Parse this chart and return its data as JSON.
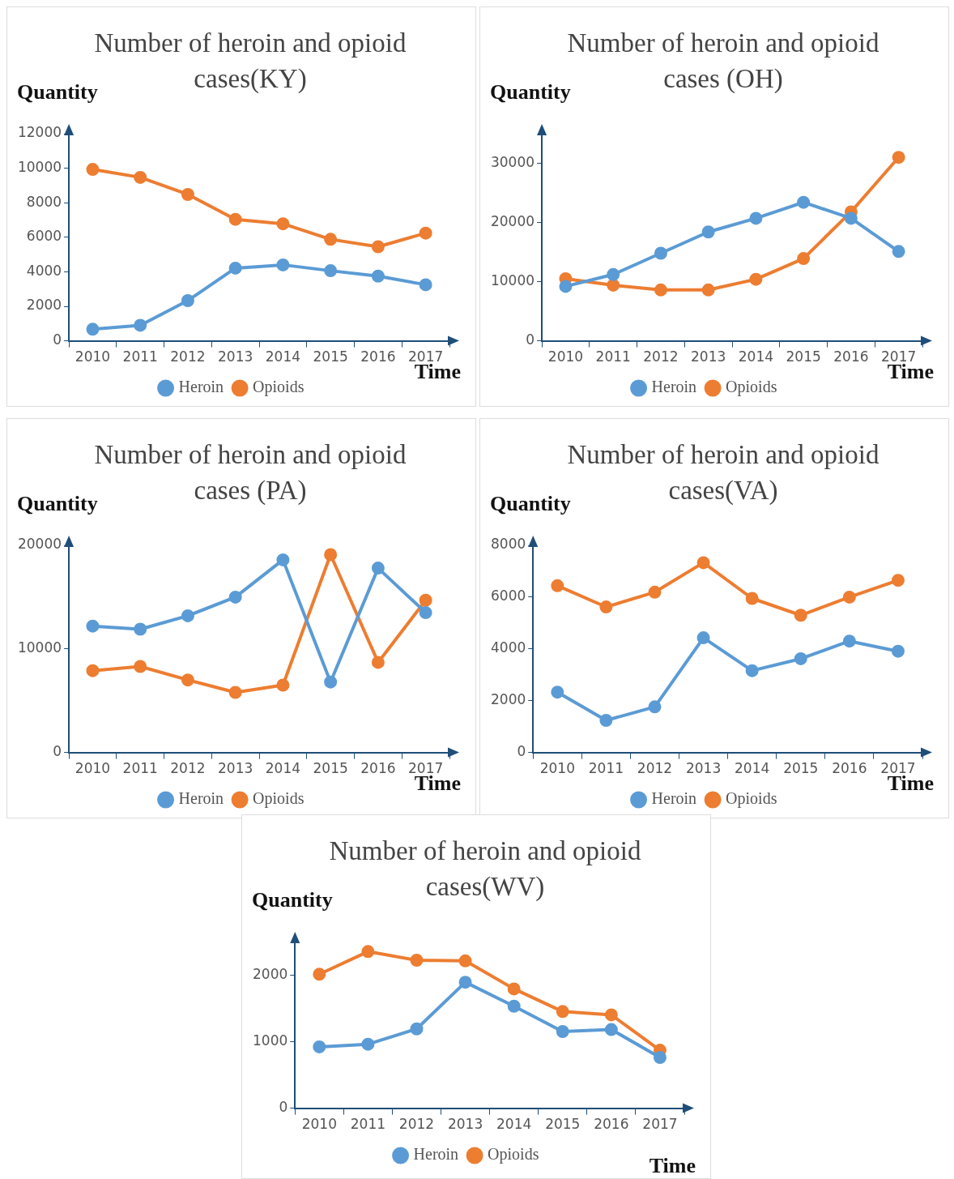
{
  "chart_data": [
    {
      "type": "line",
      "title": "Number of heroin and opioid cases(KY)",
      "ylabel": "Quantity",
      "xlabel": "Time",
      "categories": [
        "2010",
        "2011",
        "2012",
        "2013",
        "2014",
        "2015",
        "2016",
        "2017"
      ],
      "ylim": [
        0,
        12000
      ],
      "yticks": [
        0,
        2000,
        4000,
        6000,
        8000,
        10000,
        12000
      ],
      "grid": false,
      "legend": "bottom",
      "marker": "circle",
      "series": [
        {
          "name": "Heroin",
          "color": "#5b9bd5",
          "values": [
            670,
            900,
            2330,
            4210,
            4400,
            4060,
            3750,
            3250
          ]
        },
        {
          "name": "Opioids",
          "color": "#ed7d31",
          "values": [
            9930,
            9470,
            8480,
            7040,
            6780,
            5880,
            5450,
            6240
          ]
        }
      ]
    },
    {
      "type": "line",
      "title": "Number of heroin and opioid cases (OH)",
      "ylabel": "Quantity",
      "xlabel": "Time",
      "categories": [
        "2010",
        "2011",
        "2012",
        "2013",
        "2014",
        "2015",
        "2016",
        "2017"
      ],
      "ylim": [
        0,
        35000
      ],
      "yticks": [
        0,
        10000,
        20000,
        30000
      ],
      "grid": false,
      "legend": "bottom",
      "marker": "circle",
      "series": [
        {
          "name": "Heroin",
          "color": "#5b9bd5",
          "values": [
            9200,
            11200,
            14800,
            18400,
            20700,
            23400,
            20700,
            15100
          ]
        },
        {
          "name": "Opioids",
          "color": "#ed7d31",
          "values": [
            10500,
            9400,
            8600,
            8600,
            10400,
            13900,
            21800,
            31000
          ]
        }
      ]
    },
    {
      "type": "line",
      "title": "Number of heroin and opioid cases (PA)",
      "ylabel": "Quantity",
      "xlabel": "Time",
      "categories": [
        "2010",
        "2011",
        "2012",
        "2013",
        "2014",
        "2015",
        "2016",
        "2017"
      ],
      "ylim": [
        0,
        20000
      ],
      "yticks": [
        0,
        10000,
        20000
      ],
      "grid": false,
      "legend": "bottom",
      "marker": "circle",
      "series": [
        {
          "name": "Heroin",
          "color": "#5b9bd5",
          "values": [
            12200,
            11900,
            13200,
            15000,
            18600,
            6800,
            17800,
            13500
          ]
        },
        {
          "name": "Opioids",
          "color": "#ed7d31",
          "values": [
            7900,
            8300,
            7000,
            5800,
            6500,
            19100,
            8700,
            14700
          ]
        }
      ]
    },
    {
      "type": "line",
      "title": "Number of heroin and opioid cases(VA)",
      "ylabel": "Quantity",
      "xlabel": "Time",
      "categories": [
        "2010",
        "2011",
        "2012",
        "2013",
        "2014",
        "2015",
        "2016",
        "2017"
      ],
      "ylim": [
        0,
        8000
      ],
      "yticks": [
        0,
        2000,
        4000,
        6000,
        8000
      ],
      "grid": false,
      "legend": "bottom",
      "marker": "circle",
      "series": [
        {
          "name": "Heroin",
          "color": "#5b9bd5",
          "values": [
            2330,
            1240,
            1760,
            4430,
            3160,
            3620,
            4300,
            3910
          ]
        },
        {
          "name": "Opioids",
          "color": "#ed7d31",
          "values": [
            6440,
            5620,
            6190,
            7330,
            5950,
            5300,
            6000,
            6650
          ]
        }
      ]
    },
    {
      "type": "line",
      "title": "Number of heroin and opioid cases(WV)",
      "ylabel": "Quantity",
      "xlabel": "Time",
      "categories": [
        "2010",
        "2011",
        "2012",
        "2013",
        "2014",
        "2015",
        "2016",
        "2017"
      ],
      "ylim": [
        0,
        2500
      ],
      "yticks": [
        0,
        1000,
        2000
      ],
      "grid": false,
      "legend": "bottom",
      "marker": "circle",
      "series": [
        {
          "name": "Heroin",
          "color": "#5b9bd5",
          "values": [
            920,
            960,
            1190,
            1890,
            1530,
            1150,
            1180,
            760
          ]
        },
        {
          "name": "Opioids",
          "color": "#ed7d31",
          "values": [
            2010,
            2350,
            2220,
            2210,
            1790,
            1450,
            1400,
            870
          ]
        }
      ]
    }
  ]
}
